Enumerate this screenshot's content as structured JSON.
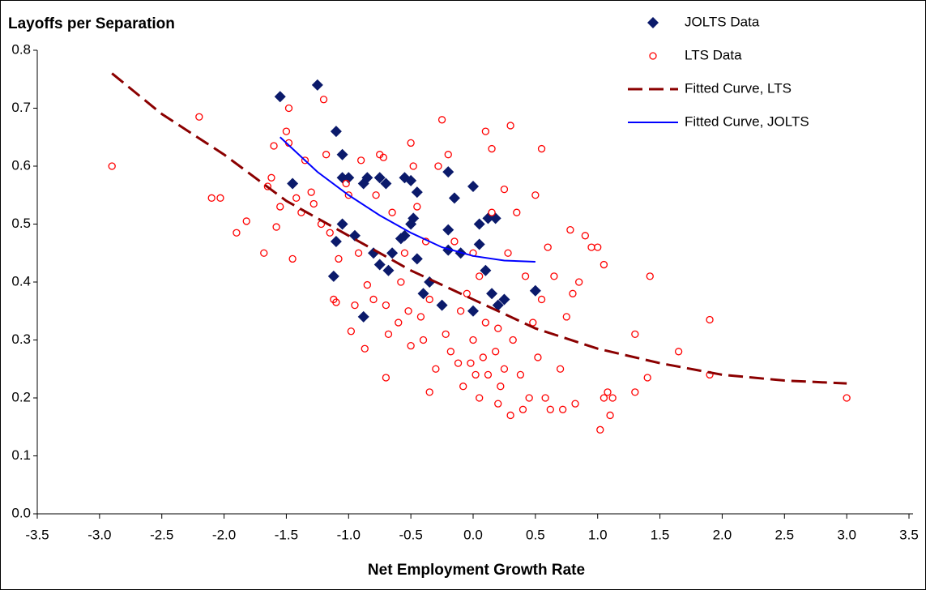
{
  "chart_data": {
    "type": "scatter",
    "y_label": "Layoffs per Separation",
    "x_label": "Net Employment Growth Rate",
    "xlim": [
      -3.5,
      3.5
    ],
    "ylim": [
      0,
      0.8
    ],
    "xticks": [
      -3.5,
      {
        "value": -3,
        "label": "-3.0"
      },
      -2.5,
      {
        "value": -2,
        "label": "-2.0"
      },
      -1.5,
      {
        "value": -1,
        "label": "-1.0"
      },
      -0.5,
      {
        "value": 0,
        "label": "0.0"
      },
      0.5,
      {
        "value": 1,
        "label": "1.0"
      },
      1.5,
      {
        "value": 2,
        "label": "2.0"
      },
      2.5,
      {
        "value": 3,
        "label": "3.0"
      },
      3.5
    ],
    "yticks": [
      {
        "value": 0,
        "label": "0.0"
      },
      0.1,
      0.2,
      0.3,
      0.4,
      0.5,
      0.6,
      0.7,
      0.8
    ],
    "legend": "upper right",
    "series": [
      {
        "name": "JOLTS Data",
        "type": "scatter",
        "marker": "diamond",
        "color": "#0b1a6b",
        "x": [
          -1.55,
          -1.25,
          -1.1,
          -1.45,
          -1.05,
          -1.05,
          -1.0,
          -0.88,
          -0.85,
          -0.75,
          -0.7,
          -0.55,
          -0.5,
          -0.45,
          -0.2,
          0.0,
          -0.15,
          -1.05,
          -1.1,
          -0.95,
          -1.12,
          -0.8,
          -0.75,
          -0.65,
          -0.68,
          -0.55,
          -0.5,
          -0.48,
          -0.45,
          -0.4,
          -0.35,
          -0.2,
          -0.2,
          -0.1,
          0.0,
          -0.25,
          -0.88,
          0.05,
          0.12,
          0.18,
          0.1,
          0.15,
          0.2,
          0.25,
          0.5,
          0.05,
          -0.58
        ],
        "values": [
          0.72,
          0.74,
          0.66,
          0.57,
          0.62,
          0.58,
          0.58,
          0.57,
          0.58,
          0.58,
          0.57,
          0.58,
          0.575,
          0.555,
          0.59,
          0.565,
          0.545,
          0.5,
          0.47,
          0.48,
          0.41,
          0.45,
          0.43,
          0.45,
          0.42,
          0.48,
          0.5,
          0.51,
          0.44,
          0.38,
          0.4,
          0.49,
          0.455,
          0.45,
          0.35,
          0.36,
          0.34,
          0.5,
          0.51,
          0.51,
          0.42,
          0.38,
          0.36,
          0.37,
          0.385,
          0.465,
          0.475
        ]
      },
      {
        "name": "LTS Data",
        "type": "scatter",
        "marker": "circle",
        "color": "#ff0000",
        "x": [
          -2.9,
          -2.2,
          -2.1,
          -2.03,
          -1.9,
          -1.82,
          -1.68,
          -1.65,
          -1.62,
          -1.6,
          -1.58,
          -1.55,
          -1.48,
          -1.48,
          -1.5,
          -1.45,
          -1.42,
          -1.38,
          -1.35,
          -1.3,
          -1.28,
          -1.22,
          -1.2,
          -1.18,
          -1.15,
          -1.12,
          -1.1,
          -1.08,
          -1.02,
          -1.0,
          -0.98,
          -0.95,
          -0.92,
          -0.9,
          -0.87,
          -0.85,
          -0.8,
          -0.78,
          -0.75,
          -0.72,
          -0.7,
          -0.7,
          -0.68,
          -0.65,
          -0.6,
          -0.58,
          -0.55,
          -0.52,
          -0.5,
          -0.5,
          -0.48,
          -0.45,
          -0.42,
          -0.4,
          -0.38,
          -0.35,
          -0.35,
          -0.3,
          -0.28,
          -0.25,
          -0.22,
          -0.2,
          -0.18,
          -0.15,
          -0.12,
          -0.1,
          -0.08,
          -0.05,
          -0.02,
          0.0,
          0.0,
          0.02,
          0.05,
          0.05,
          0.08,
          0.1,
          0.1,
          0.12,
          0.15,
          0.15,
          0.18,
          0.2,
          0.2,
          0.22,
          0.25,
          0.25,
          0.28,
          0.3,
          0.3,
          0.32,
          0.35,
          0.38,
          0.4,
          0.42,
          0.45,
          0.48,
          0.5,
          0.52,
          0.55,
          0.55,
          0.58,
          0.6,
          0.62,
          0.65,
          0.7,
          0.72,
          0.75,
          0.78,
          0.8,
          0.82,
          0.85,
          0.9,
          0.95,
          1.0,
          1.02,
          1.05,
          1.05,
          1.08,
          1.1,
          1.12,
          1.3,
          1.3,
          1.4,
          1.42,
          1.65,
          1.9,
          1.9,
          3.0
        ],
        "values": [
          0.6,
          0.685,
          0.545,
          0.545,
          0.485,
          0.505,
          0.45,
          0.565,
          0.58,
          0.635,
          0.495,
          0.53,
          0.64,
          0.7,
          0.66,
          0.44,
          0.545,
          0.52,
          0.61,
          0.555,
          0.535,
          0.5,
          0.715,
          0.62,
          0.485,
          0.37,
          0.365,
          0.44,
          0.57,
          0.55,
          0.315,
          0.36,
          0.45,
          0.61,
          0.285,
          0.395,
          0.37,
          0.55,
          0.62,
          0.615,
          0.235,
          0.36,
          0.31,
          0.52,
          0.33,
          0.4,
          0.45,
          0.35,
          0.29,
          0.64,
          0.6,
          0.53,
          0.34,
          0.3,
          0.47,
          0.21,
          0.37,
          0.25,
          0.6,
          0.68,
          0.31,
          0.62,
          0.28,
          0.47,
          0.26,
          0.35,
          0.22,
          0.38,
          0.26,
          0.45,
          0.3,
          0.24,
          0.2,
          0.41,
          0.27,
          0.66,
          0.33,
          0.24,
          0.63,
          0.52,
          0.28,
          0.19,
          0.32,
          0.22,
          0.56,
          0.25,
          0.45,
          0.67,
          0.17,
          0.3,
          0.52,
          0.24,
          0.18,
          0.41,
          0.2,
          0.33,
          0.55,
          0.27,
          0.63,
          0.37,
          0.2,
          0.46,
          0.18,
          0.41,
          0.25,
          0.18,
          0.34,
          0.49,
          0.38,
          0.19,
          0.4,
          0.48,
          0.46,
          0.46,
          0.145,
          0.43,
          0.2,
          0.21,
          0.17,
          0.2,
          0.21,
          0.31,
          0.235,
          0.41,
          0.28,
          0.335,
          0.24,
          0.2
        ]
      },
      {
        "name": "Fitted Curve, LTS",
        "type": "line",
        "dashed": true,
        "color": "#8b0000",
        "x": [
          -2.9,
          -2.5,
          -2.0,
          -1.5,
          -1.0,
          -0.5,
          0.0,
          0.5,
          1.0,
          1.5,
          2.0,
          2.5,
          3.0
        ],
        "values": [
          0.76,
          0.69,
          0.62,
          0.54,
          0.48,
          0.42,
          0.37,
          0.32,
          0.285,
          0.26,
          0.24,
          0.23,
          0.225
        ]
      },
      {
        "name": "Fitted Curve, JOLTS",
        "type": "line",
        "dashed": false,
        "color": "#0000ff",
        "x": [
          -1.55,
          -1.25,
          -1.0,
          -0.75,
          -0.5,
          -0.25,
          0.0,
          0.25,
          0.5
        ],
        "values": [
          0.65,
          0.59,
          0.55,
          0.515,
          0.485,
          0.46,
          0.445,
          0.437,
          0.435
        ]
      }
    ]
  }
}
